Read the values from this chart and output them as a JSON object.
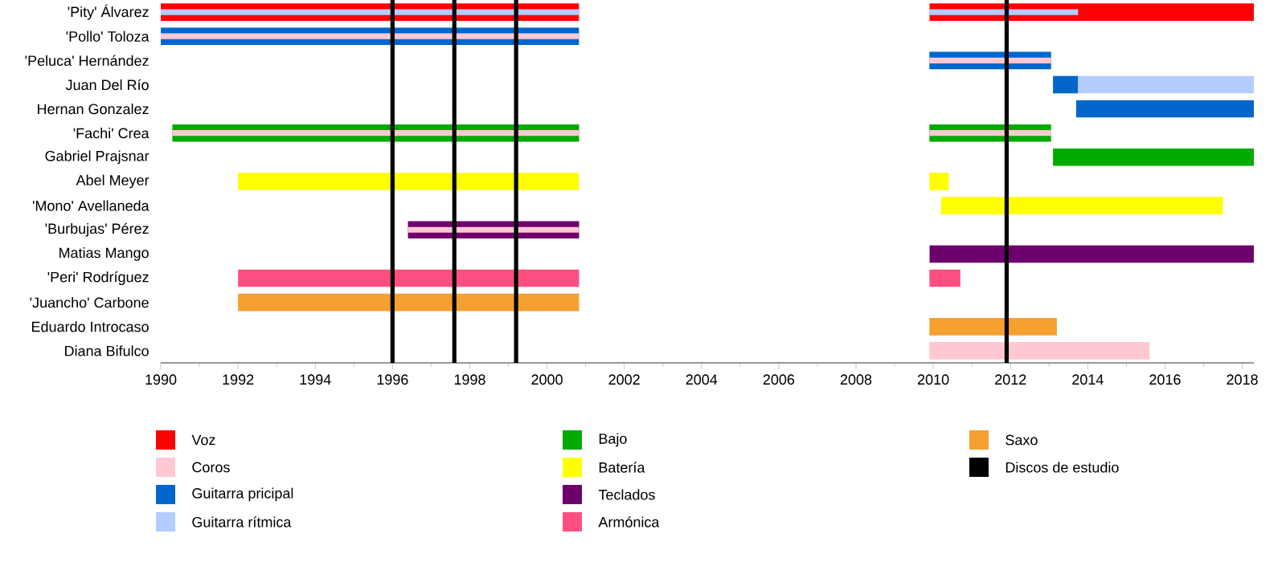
{
  "chart_data": {
    "type": "bar",
    "orientation": "horizontal",
    "legend": "bottom",
    "categories": [
      "'Pity' Álvarez",
      "'Pollo' Toloza",
      "'Peluca' Hernández",
      "Juan Del Río",
      "Hernan Gonzalez",
      "'Fachi' Crea",
      "Gabriel Prajsnar",
      "Abel Meyer",
      "'Mono' Avellaneda",
      "'Burbujas' Pérez",
      "Matias Mango",
      "'Peri' Rodríguez",
      "'Juancho' Carbone",
      "Eduardo Introcaso",
      "Diana Bifulco"
    ],
    "xlim": [
      1990,
      2018.3
    ],
    "xticks": [
      1990,
      1992,
      1994,
      1996,
      1998,
      2000,
      2002,
      2004,
      2006,
      2008,
      2010,
      2012,
      2014,
      2016,
      2018
    ],
    "series": [
      {
        "name": "Voz",
        "color": "#ff0000",
        "base": [
          1990,
          null,
          null,
          null,
          null,
          null,
          null,
          null,
          null,
          null,
          null,
          null,
          null,
          null,
          null
        ],
        "values": [
          10.83,
          null,
          null,
          null,
          null,
          null,
          null,
          null,
          null,
          null,
          null,
          null,
          null,
          null,
          null
        ]
      },
      {
        "name": "Coros",
        "color": "#ffc8d2",
        "base": [
          null,
          null,
          null,
          null,
          null,
          null,
          null,
          null,
          null,
          null,
          null,
          null,
          null,
          null,
          2009.9
        ],
        "values": [
          null,
          null,
          null,
          null,
          null,
          null,
          null,
          null,
          null,
          null,
          null,
          null,
          null,
          null,
          5.7
        ]
      },
      {
        "name": "Guitarra pricipal",
        "color": "#0066cc",
        "base": [
          null,
          1990,
          2009.9,
          2013.1,
          2013.7,
          null,
          null,
          null,
          null,
          null,
          null,
          null,
          null,
          null,
          null
        ],
        "values": [
          null,
          10.83,
          3.15,
          0.65,
          4.6,
          null,
          null,
          null,
          null,
          null,
          null,
          null,
          null,
          null,
          null
        ]
      },
      {
        "name": "Guitarra rítmica",
        "color": "#b4ccff",
        "base": [
          null,
          null,
          null,
          2013.75,
          null,
          null,
          null,
          null,
          null,
          null,
          null,
          null,
          null,
          null,
          null
        ],
        "values": [
          null,
          null,
          null,
          4.55,
          null,
          null,
          null,
          null,
          null,
          null,
          null,
          null,
          null,
          null,
          null
        ]
      },
      {
        "name": "Bajo",
        "color": "#00aa00",
        "base": [
          null,
          null,
          null,
          null,
          null,
          1990.3,
          2013.1,
          null,
          null,
          null,
          null,
          null,
          null,
          null,
          null
        ],
        "values": [
          null,
          null,
          null,
          null,
          null,
          10.53,
          5.2,
          null,
          null,
          null,
          null,
          null,
          null,
          null,
          null
        ]
      },
      {
        "name": "Batería",
        "color": "#ffff00",
        "base": [
          null,
          null,
          null,
          null,
          null,
          null,
          null,
          1992,
          2010.2,
          null,
          null,
          null,
          null,
          null,
          null
        ],
        "values": [
          null,
          null,
          null,
          null,
          null,
          null,
          null,
          8.83,
          7.3,
          null,
          null,
          null,
          null,
          null,
          null
        ]
      },
      {
        "name": "Teclados",
        "color": "#6e006e",
        "base": [
          null,
          null,
          null,
          null,
          null,
          null,
          null,
          null,
          null,
          1996.4,
          2009.9,
          null,
          null,
          null,
          null
        ],
        "values": [
          null,
          null,
          null,
          null,
          null,
          null,
          null,
          null,
          null,
          4.43,
          8.4,
          null,
          null,
          null,
          null
        ]
      },
      {
        "name": "Armónica",
        "color": "#ff4f80",
        "base": [
          null,
          null,
          null,
          null,
          null,
          null,
          null,
          null,
          null,
          null,
          null,
          1992,
          null,
          null,
          null
        ],
        "values": [
          null,
          null,
          null,
          null,
          null,
          null,
          null,
          null,
          null,
          null,
          null,
          8.83,
          null,
          null,
          null
        ]
      },
      {
        "name": "Saxo",
        "color": "#f5a030",
        "base": [
          null,
          null,
          null,
          null,
          null,
          null,
          null,
          null,
          null,
          null,
          null,
          null,
          1992,
          2009.9,
          null
        ],
        "values": [
          null,
          null,
          null,
          null,
          null,
          null,
          null,
          null,
          null,
          null,
          null,
          null,
          8.83,
          3.3,
          null
        ]
      },
      {
        "color": "#ff0000",
        "base": [
          2009.9,
          null,
          null,
          null,
          null,
          null,
          null,
          null,
          null,
          null,
          null,
          null,
          null,
          null,
          null
        ],
        "values": [
          8.4,
          null,
          null,
          null,
          null,
          null,
          null,
          null,
          null,
          null,
          null,
          null,
          null,
          null,
          null
        ]
      },
      {
        "color": "#00aa00",
        "base": [
          null,
          null,
          null,
          null,
          null,
          2009.9,
          null,
          null,
          null,
          null,
          null,
          null,
          null,
          null,
          null
        ],
        "values": [
          null,
          null,
          null,
          null,
          null,
          3.15,
          null,
          null,
          null,
          null,
          null,
          null,
          null,
          null,
          null
        ]
      },
      {
        "color": "#ffff00",
        "base": [
          null,
          null,
          null,
          null,
          null,
          null,
          null,
          2009.9,
          null,
          null,
          null,
          null,
          null,
          null,
          null
        ],
        "values": [
          null,
          null,
          null,
          null,
          null,
          null,
          null,
          0.5,
          null,
          null,
          null,
          null,
          null,
          null,
          null
        ]
      },
      {
        "color": "#ff4f80",
        "base": [
          null,
          null,
          null,
          null,
          null,
          null,
          null,
          null,
          null,
          null,
          null,
          2009.9,
          null,
          null,
          null
        ],
        "values": [
          null,
          null,
          null,
          null,
          null,
          null,
          null,
          null,
          null,
          null,
          null,
          0.8,
          null,
          null,
          null
        ]
      },
      {
        "color": "#b4ccff",
        "base": [
          1990,
          null,
          null,
          null,
          null,
          null,
          null,
          null,
          null,
          null,
          null,
          null,
          null,
          null,
          null
        ],
        "values": [
          10.83,
          null,
          null,
          null,
          null,
          null,
          null,
          null,
          null,
          null,
          null,
          null,
          null,
          null,
          null
        ]
      },
      {
        "color": "#b4ccff",
        "base": [
          2009.9,
          null,
          null,
          null,
          null,
          null,
          null,
          null,
          null,
          null,
          null,
          null,
          null,
          null,
          null
        ],
        "values": [
          3.85,
          null,
          null,
          null,
          null,
          null,
          null,
          null,
          null,
          null,
          null,
          null,
          null,
          null,
          null
        ]
      },
      {
        "color": "#ffc8d2",
        "base": [
          null,
          1990,
          null,
          null,
          null,
          1990.3,
          null,
          null,
          null,
          1996.4,
          null,
          null,
          null,
          null,
          null
        ],
        "values": [
          null,
          10.83,
          null,
          null,
          null,
          10.53,
          null,
          null,
          null,
          4.43,
          null,
          null,
          null,
          null,
          null
        ]
      },
      {
        "color": "#ffc8d2",
        "base": [
          null,
          null,
          2009.9,
          null,
          null,
          2009.9,
          null,
          null,
          null,
          null,
          null,
          null,
          null,
          null,
          null
        ],
        "values": [
          null,
          null,
          3.15,
          null,
          null,
          3.15,
          null,
          null,
          null,
          null,
          null,
          null,
          null,
          null,
          null
        ]
      }
    ],
    "ref_lines": [
      {
        "axis": "x",
        "value": 1996,
        "color": "#000000",
        "label": "Discos de estudio"
      },
      {
        "axis": "x",
        "value": 1997.6,
        "color": "#000000"
      },
      {
        "axis": "x",
        "value": 1999.2,
        "color": "#000000"
      },
      {
        "axis": "x",
        "value": 2011.9,
        "color": "#000000"
      }
    ]
  }
}
